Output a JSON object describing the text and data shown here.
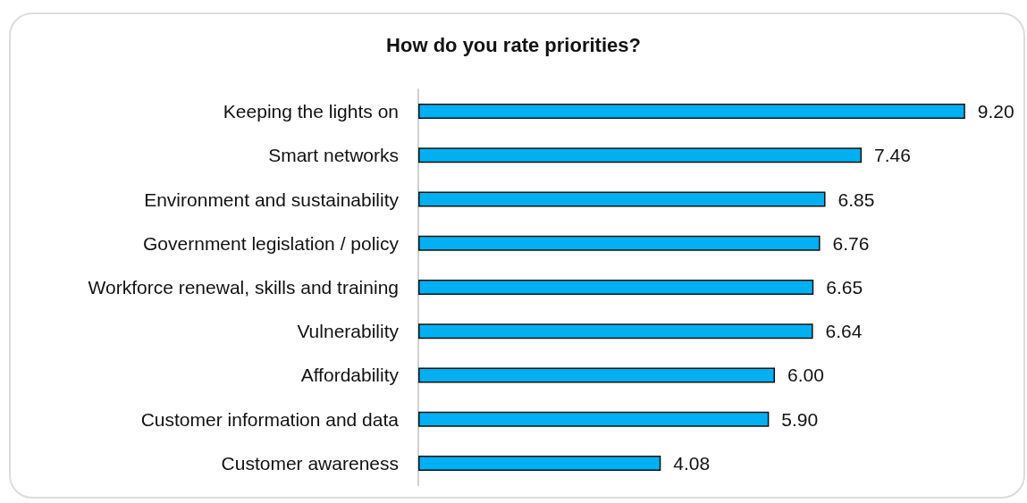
{
  "chart_data": {
    "type": "bar",
    "orientation": "horizontal",
    "title": "How do you rate priorities?",
    "categories": [
      "Keeping the lights on",
      "Smart networks",
      "Environment and sustainability",
      "Government legislation / policy",
      "Workforce renewal, skills and training",
      "Vulnerability",
      "Affordability",
      "Customer information and data",
      "Customer awareness"
    ],
    "values": [
      9.2,
      7.46,
      6.85,
      6.76,
      6.65,
      6.64,
      6.0,
      5.9,
      4.08
    ],
    "value_labels": [
      "9.20",
      "7.46",
      "6.85",
      "6.76",
      "6.65",
      "6.64",
      "6.00",
      "5.90",
      "4.08"
    ],
    "color": "#00b0f0",
    "tick_labels": "y"
  }
}
